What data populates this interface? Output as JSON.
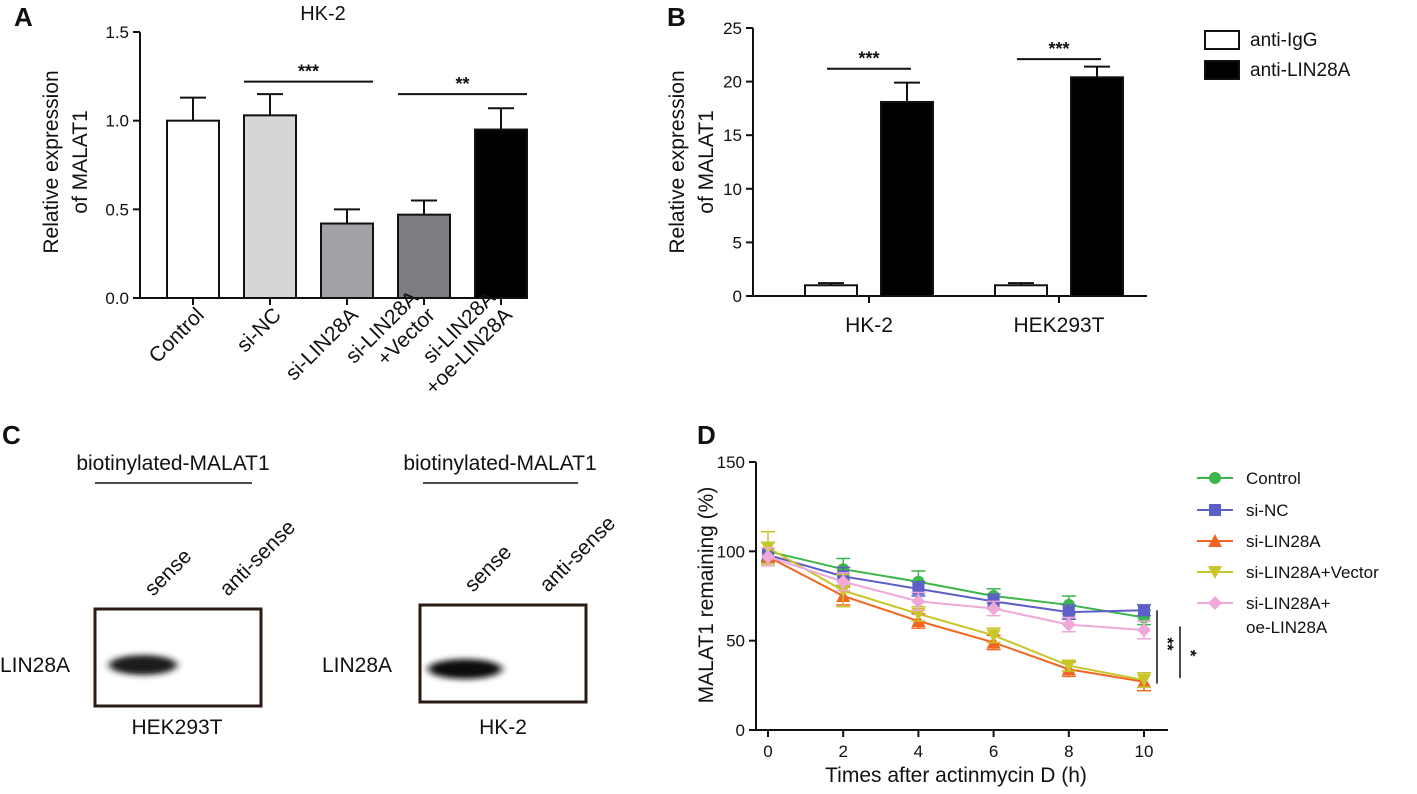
{
  "figure": {
    "panel_labels": {
      "a": "A",
      "b": "B",
      "c": "C",
      "d": "D"
    }
  },
  "chart_data": [
    {
      "id": "A",
      "type": "bar",
      "title": "HK-2",
      "ylabel": "Relative expression\nof MALAT1",
      "xlabel": "",
      "ylim": [
        0,
        1.5
      ],
      "yticks": [
        "0.0",
        "0.5",
        "1.0",
        "1.5"
      ],
      "categories": [
        "Control",
        "si-NC",
        "si-LIN28A",
        "si-LIN28A\n+Vector",
        "si-LIN28A\n+oe-LIN28A"
      ],
      "values": [
        1.0,
        1.03,
        0.42,
        0.47,
        0.95
      ],
      "errors": [
        0.13,
        0.12,
        0.08,
        0.08,
        0.12
      ],
      "colors": [
        "#ffffff",
        "#d5d6d8",
        "#a0a2a6",
        "#7c7d80",
        "#000000"
      ],
      "significance": [
        {
          "from": 1,
          "to": 2,
          "label": "***",
          "y": 1.22
        },
        {
          "from": 3,
          "to": 4,
          "label": "**",
          "y": 1.15
        }
      ]
    },
    {
      "id": "B",
      "type": "bar",
      "title": "",
      "ylabel": "Relative expression\nof MALAT1",
      "xlabel": "",
      "ylim": [
        0,
        25
      ],
      "yticks": [
        "0",
        "5",
        "10",
        "15",
        "20",
        "25"
      ],
      "categories": [
        "HK-2",
        "HEK293T"
      ],
      "series": [
        {
          "name": "anti-IgG",
          "color": "#ffffff",
          "values": [
            1.0,
            1.0
          ],
          "errors": [
            0.2,
            0.2
          ]
        },
        {
          "name": "anti-LIN28A",
          "color": "#000000",
          "values": [
            18.1,
            20.4
          ],
          "errors": [
            1.8,
            1.0
          ]
        }
      ],
      "significance": [
        {
          "group": 0,
          "label": "***",
          "y": 21.2
        },
        {
          "group": 1,
          "label": "***",
          "y": 22.1
        }
      ]
    },
    {
      "id": "D",
      "type": "line",
      "title": "",
      "xlabel": "Times after actinmycin D (h)",
      "ylabel": "MALAT1 remaining  (%)",
      "xlim": [
        0,
        10
      ],
      "ylim": [
        0,
        150
      ],
      "xticks": [
        "0",
        "2",
        "4",
        "6",
        "8",
        "10"
      ],
      "yticks": [
        "0",
        "50",
        "100",
        "150"
      ],
      "x": [
        0,
        2,
        4,
        6,
        8,
        10
      ],
      "series": [
        {
          "name": "Control",
          "color": "#3cb54a",
          "marker": "circle",
          "values": [
            100,
            90,
            83,
            75,
            70,
            63
          ],
          "errors": [
            5,
            6,
            6,
            4,
            5,
            4
          ]
        },
        {
          "name": "si-NC",
          "color": "#5b5fc7",
          "marker": "square",
          "values": [
            98,
            86,
            79,
            72,
            66,
            67
          ],
          "errors": [
            4,
            5,
            4,
            4,
            4,
            3
          ]
        },
        {
          "name": "si-LIN28A",
          "color": "#f26522",
          "marker": "triangle-up",
          "values": [
            97,
            75,
            61,
            49,
            34,
            27
          ],
          "errors": [
            5,
            5,
            4,
            4,
            4,
            5
          ]
        },
        {
          "name": "si-LIN28A+Vector",
          "color": "#c8c62a",
          "marker": "triangle-down",
          "values": [
            102,
            78,
            65,
            53,
            36,
            28
          ],
          "errors": [
            9,
            9,
            4,
            4,
            3,
            4
          ]
        },
        {
          "name": "si-LIN28A+\noe-LIN28A",
          "color": "#f0a8d8",
          "marker": "diamond",
          "values": [
            97,
            83,
            72,
            68,
            59,
            56
          ],
          "errors": [
            5,
            5,
            5,
            4,
            4,
            5
          ]
        }
      ],
      "significance": [
        {
          "label": "**"
        },
        {
          "label": "*"
        }
      ]
    }
  ],
  "blots": [
    {
      "id": "C-left",
      "header": "biotinylated-MALAT1",
      "lanes": [
        "sense",
        "anti-sense"
      ],
      "row_label": "LIN28A",
      "cell_line": "HEK293T"
    },
    {
      "id": "C-right",
      "header": "biotinylated-MALAT1",
      "lanes": [
        "sense",
        "anti-sense"
      ],
      "row_label": "LIN28A",
      "cell_line": "HK-2"
    }
  ]
}
